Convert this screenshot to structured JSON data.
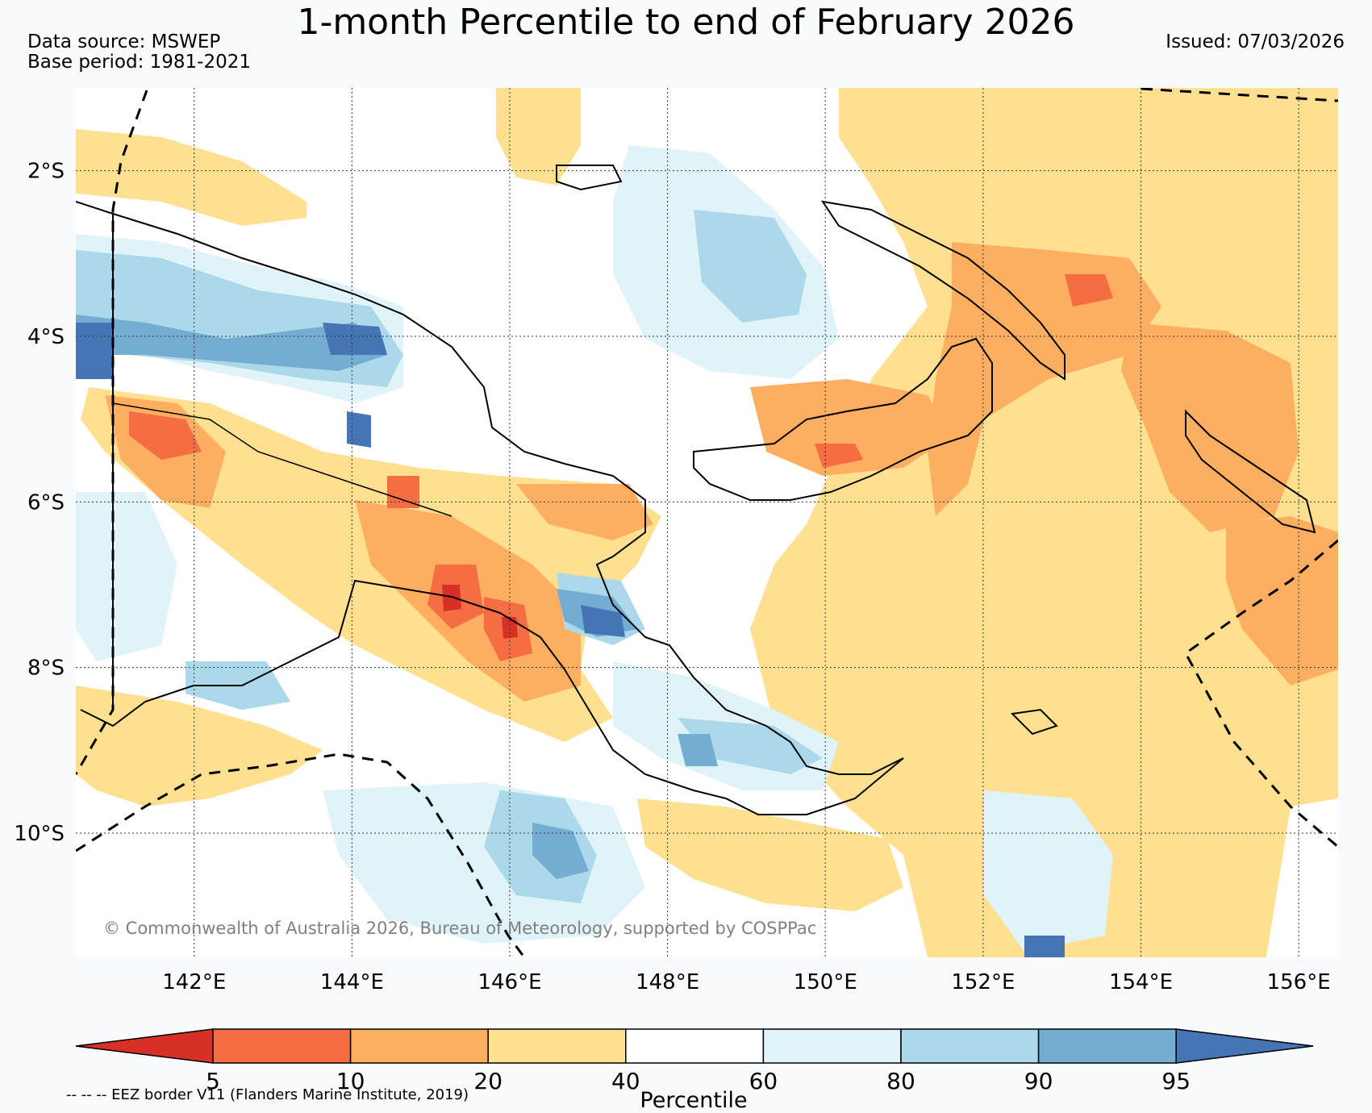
{
  "title": "1-month Percentile to end of February 2026",
  "data_source": "Data source: MSWEP",
  "base_period": "Base period: 1981-2021",
  "issued": "Issued: 07/03/2026",
  "copyright": "© Commonwealth of Australia 2026, Bureau of Meteorology, supported by COSPPac",
  "eez_note": "-- -- -- EEZ border V11 (Flanders Marine Institute, 2019)",
  "map": {
    "lon_range": [
      140.5,
      156.5
    ],
    "lat_range": [
      -11.5,
      -1.0
    ],
    "lat_ticks": [
      {
        "value": -2,
        "label": "2°S"
      },
      {
        "value": -4,
        "label": "4°S"
      },
      {
        "value": -6,
        "label": "6°S"
      },
      {
        "value": -8,
        "label": "8°S"
      },
      {
        "value": -10,
        "label": "10°S"
      }
    ],
    "lon_ticks": [
      {
        "value": 142,
        "label": "142°E"
      },
      {
        "value": 144,
        "label": "144°E"
      },
      {
        "value": 146,
        "label": "146°E"
      },
      {
        "value": 148,
        "label": "148°E"
      },
      {
        "value": 150,
        "label": "150°E"
      },
      {
        "value": 152,
        "label": "152°E"
      },
      {
        "value": 154,
        "label": "154°E"
      },
      {
        "value": 156,
        "label": "156°E"
      }
    ],
    "colors": {
      "lt5": "#d73027",
      "p5_10": "#f46d43",
      "p10_20": "#fdae61",
      "p20_40": "#fee090",
      "p40_60": "#ffffff",
      "p60_80": "#e0f3f8",
      "p80_90": "#abd9e9",
      "p90_95": "#74add1",
      "gt95": "#4575b4"
    }
  },
  "colorbar": {
    "label": "Percentile",
    "ticks": [
      "5",
      "10",
      "20",
      "40",
      "60",
      "80",
      "90",
      "95"
    ],
    "colors": [
      "#d73027",
      "#f46d43",
      "#fdae61",
      "#fee090",
      "#ffffff",
      "#e0f3f8",
      "#abd9e9",
      "#74add1",
      "#4575b4"
    ]
  }
}
